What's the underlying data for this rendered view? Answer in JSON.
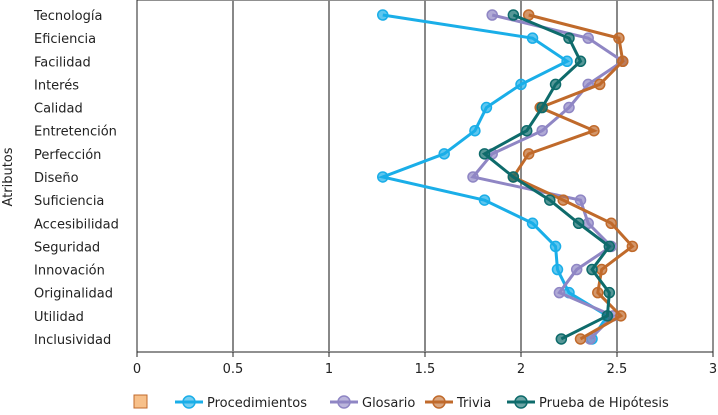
{
  "chart_data": {
    "type": "line",
    "title": "",
    "xlabel": "",
    "ylabel": "Atributos",
    "xlim": [
      0,
      3
    ],
    "xticks": [
      "0",
      "0.5",
      "1",
      "1.5",
      "2",
      "2.5",
      "3"
    ],
    "grid": "vertical",
    "legend_position": "bottom",
    "legend_extra": "",
    "categories": [
      "Tecnología",
      "Eficiencia",
      "Facilidad",
      "Interés",
      "Calidad",
      "Entretención",
      "Perfección",
      "Diseño",
      "Suficiencia",
      "Accesibilidad",
      "Seguridad",
      "Innovación",
      "Originalidad",
      "Utilidad",
      "Inclusividad"
    ],
    "series": [
      {
        "name": "Procedimientos",
        "color": "#1aaee8",
        "values": [
          1.28,
          2.06,
          2.24,
          2.0,
          1.82,
          1.76,
          1.6,
          1.28,
          1.81,
          2.06,
          2.18,
          2.19,
          2.25,
          2.45,
          2.37
        ]
      },
      {
        "name": "Glosario",
        "color": "#8f86c4",
        "values": [
          1.85,
          2.35,
          2.53,
          2.35,
          2.25,
          2.11,
          1.85,
          1.75,
          2.31,
          2.35,
          2.47,
          2.29,
          2.2,
          2.48,
          2.36
        ]
      },
      {
        "name": "Trivia",
        "color": "#c06a2b",
        "values": [
          2.04,
          2.51,
          2.53,
          2.41,
          2.1,
          2.38,
          2.04,
          1.96,
          2.22,
          2.47,
          2.58,
          2.42,
          2.4,
          2.52,
          2.31
        ]
      },
      {
        "name": "Prueba de Hipótesis",
        "color": "#0e6b6b",
        "values": [
          1.96,
          2.25,
          2.31,
          2.18,
          2.11,
          2.03,
          1.81,
          1.96,
          2.15,
          2.3,
          2.46,
          2.37,
          2.46,
          2.45,
          2.21
        ]
      }
    ]
  }
}
